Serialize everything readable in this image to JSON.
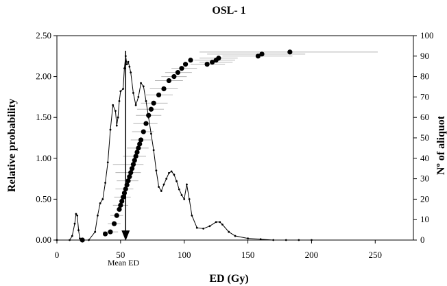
{
  "chart_data": {
    "type": "line",
    "title": "OSL- 1",
    "xlabel": "ED (Gy)",
    "ylabel": "Relative probability",
    "y2label": "Nº of aliquot",
    "xlim": [
      0,
      280
    ],
    "ylim": [
      0,
      2.5
    ],
    "y2lim": [
      0,
      100
    ],
    "x_ticks": [
      "0",
      "50",
      "100",
      "150",
      "200",
      "250"
    ],
    "y_ticks": [
      "0.00",
      "0.50",
      "1.00",
      "1.50",
      "2.00",
      "2.50"
    ],
    "y2_ticks": [
      "0",
      "10",
      "20",
      "30",
      "40",
      "50",
      "60",
      "70",
      "80",
      "90",
      "100"
    ],
    "grid": false,
    "annotation": {
      "label": "Mean ED",
      "x": 54
    },
    "series": [
      {
        "type": "line",
        "axis": "left",
        "x": [
          0,
          10,
          12,
          14,
          15,
          16,
          17,
          18,
          20,
          25,
          30,
          32,
          34,
          36,
          38,
          40,
          42,
          44,
          46,
          47,
          48,
          49,
          50,
          52,
          53,
          54,
          55,
          56,
          57,
          58,
          60,
          62,
          64,
          66,
          68,
          70,
          72,
          74,
          76,
          78,
          80,
          82,
          84,
          86,
          88,
          90,
          92,
          94,
          96,
          98,
          100,
          102,
          104,
          106,
          110,
          115,
          120,
          125,
          128,
          130,
          135,
          140,
          150,
          160,
          170,
          180,
          190,
          200
        ],
        "values": [
          0.0,
          0.0,
          0.05,
          0.2,
          0.32,
          0.3,
          0.12,
          0.02,
          0.0,
          0.0,
          0.1,
          0.3,
          0.45,
          0.5,
          0.7,
          0.95,
          1.35,
          1.65,
          1.58,
          1.4,
          1.5,
          1.7,
          1.82,
          1.85,
          2.1,
          2.25,
          2.15,
          2.18,
          2.12,
          2.05,
          1.8,
          1.65,
          1.75,
          1.92,
          1.88,
          1.7,
          1.5,
          1.3,
          1.1,
          0.85,
          0.65,
          0.6,
          0.68,
          0.75,
          0.82,
          0.84,
          0.8,
          0.72,
          0.62,
          0.55,
          0.5,
          0.68,
          0.5,
          0.3,
          0.15,
          0.14,
          0.17,
          0.22,
          0.22,
          0.19,
          0.1,
          0.05,
          0.02,
          0.01,
          0.0,
          0.0,
          0.0,
          0.0
        ]
      },
      {
        "type": "scatter",
        "axis": "right",
        "x": [
          20,
          38,
          42,
          45,
          47,
          49,
          50,
          51,
          52,
          53,
          54,
          55,
          56,
          57,
          58,
          59,
          60,
          61,
          62,
          63,
          64,
          65,
          66,
          68,
          70,
          72,
          74,
          76,
          80,
          84,
          88,
          92,
          95,
          98,
          101,
          105,
          118,
          122,
          125,
          127,
          158,
          161,
          183
        ],
        "values": [
          0,
          3,
          4,
          8,
          12,
          15,
          17,
          19,
          21,
          23,
          25,
          27,
          29,
          31,
          33,
          35,
          37,
          39,
          41,
          43,
          45,
          47,
          49,
          53,
          57,
          61,
          64,
          67,
          71,
          74,
          78,
          80,
          82,
          84,
          86,
          88,
          86,
          87,
          88,
          89,
          90,
          91,
          92
        ]
      },
      {
        "type": "error_bars",
        "axis": "right",
        "rows": [
          {
            "y": 92,
            "x0": 112,
            "x1": 252
          },
          {
            "y": 91,
            "x0": 118,
            "x1": 195
          },
          {
            "y": 90,
            "x0": 130,
            "x1": 185
          },
          {
            "y": 89,
            "x0": 112,
            "x1": 142
          },
          {
            "y": 88,
            "x0": 108,
            "x1": 140
          },
          {
            "y": 87,
            "x0": 112,
            "x1": 138
          },
          {
            "y": 86,
            "x0": 105,
            "x1": 132
          },
          {
            "y": 84,
            "x0": 90,
            "x1": 110
          },
          {
            "y": 82,
            "x0": 85,
            "x1": 106
          },
          {
            "y": 80,
            "x0": 82,
            "x1": 102
          },
          {
            "y": 78,
            "x0": 77,
            "x1": 99
          },
          {
            "y": 74,
            "x0": 73,
            "x1": 95
          },
          {
            "y": 71,
            "x0": 70,
            "x1": 91
          },
          {
            "y": 67,
            "x0": 66,
            "x1": 87
          },
          {
            "y": 64,
            "x0": 63,
            "x1": 84
          },
          {
            "y": 61,
            "x0": 62,
            "x1": 82
          },
          {
            "y": 57,
            "x0": 60,
            "x1": 79
          },
          {
            "y": 53,
            "x0": 59,
            "x1": 76
          },
          {
            "y": 49,
            "x0": 58,
            "x1": 74
          },
          {
            "y": 45,
            "x0": 55,
            "x1": 72
          },
          {
            "y": 41,
            "x0": 52,
            "x1": 70
          },
          {
            "y": 37,
            "x0": 44,
            "x1": 68
          },
          {
            "y": 33,
            "x0": 46,
            "x1": 66
          },
          {
            "y": 29,
            "x0": 47,
            "x1": 64
          },
          {
            "y": 25,
            "x0": 46,
            "x1": 60
          },
          {
            "y": 21,
            "x0": 45,
            "x1": 58
          },
          {
            "y": 17,
            "x0": 44,
            "x1": 56
          },
          {
            "y": 12,
            "x0": 42,
            "x1": 52
          },
          {
            "y": 8,
            "x0": 40,
            "x1": 50
          },
          {
            "y": 4,
            "x0": 36,
            "x1": 48
          }
        ]
      }
    ]
  }
}
